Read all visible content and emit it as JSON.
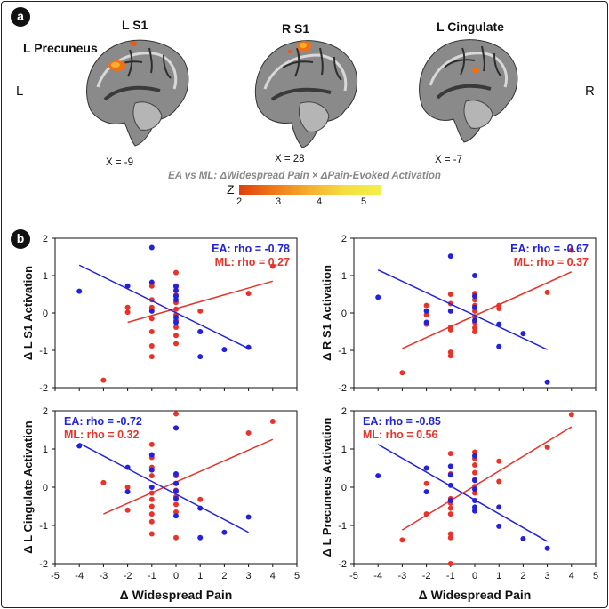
{
  "panel_a": {
    "badge": "a",
    "labels": {
      "l_s1": "L S1",
      "l_precuneus": "L Precuneus",
      "r_s1": "R S1",
      "l_cingulate": "L Cingulate",
      "left": "L",
      "right": "R"
    },
    "coords": [
      "X = -9",
      "X = 28",
      "X = -7"
    ],
    "contrast_title": "EA vs ML: ΔWidespread Pain × ΔPain-Evoked Activation",
    "colorbar": {
      "label": "Z",
      "ticks": [
        "2",
        "3",
        "4",
        "5"
      ],
      "colors": [
        "#e0400a",
        "#f6b030",
        "#f2f04a"
      ]
    }
  },
  "panel_b": {
    "badge": "b",
    "xlabel": "Δ Widespread Pain",
    "colors": {
      "EA": "#2222dd",
      "ML": "#e8332a"
    }
  },
  "chart_data": [
    {
      "type": "scatter",
      "ylabel": "Δ L S1 Activation",
      "xlim": [
        -5,
        5
      ],
      "ylim": [
        -2,
        2
      ],
      "xticks": [
        "-5",
        "-4",
        "-3",
        "-2",
        "-1",
        "0",
        "1",
        "2",
        "3",
        "4",
        "5"
      ],
      "yticks": [
        "2",
        "1",
        "0",
        "-1",
        "-2"
      ],
      "series": [
        {
          "name": "EA",
          "label": "EA: rho = -0.78",
          "points": [
            [
              -4,
              0.58
            ],
            [
              -2,
              0.72
            ],
            [
              -1,
              1.75
            ],
            [
              -1,
              0.82
            ],
            [
              -1,
              0.05
            ],
            [
              0,
              0.72
            ],
            [
              0,
              0.6
            ],
            [
              0,
              0.45
            ],
            [
              0,
              0.35
            ],
            [
              0,
              -0.12
            ],
            [
              0,
              -0.25
            ],
            [
              1,
              -0.5
            ],
            [
              1,
              -1.17
            ],
            [
              2,
              -0.98
            ],
            [
              3,
              -0.92
            ]
          ],
          "fit": [
            [
              -4,
              1.28
            ],
            [
              3,
              -0.95
            ]
          ]
        },
        {
          "name": "ML",
          "label": "ML: rho = 0.27",
          "points": [
            [
              -3,
              -1.8
            ],
            [
              -2,
              0.15
            ],
            [
              -2,
              0.02
            ],
            [
              -1,
              0.72
            ],
            [
              -1,
              0.35
            ],
            [
              -1,
              0.15
            ],
            [
              -1,
              -0.15
            ],
            [
              -1,
              -0.5
            ],
            [
              -1,
              -0.88
            ],
            [
              -1,
              -1.17
            ],
            [
              0,
              1.08
            ],
            [
              0,
              0.7
            ],
            [
              0,
              0.48
            ],
            [
              0,
              0.28
            ],
            [
              0,
              0.1
            ],
            [
              0,
              -0.05
            ],
            [
              0,
              -0.2
            ],
            [
              0,
              -0.38
            ],
            [
              0,
              -0.6
            ],
            [
              0,
              -0.82
            ],
            [
              1,
              0.05
            ],
            [
              1,
              -0.5
            ],
            [
              3,
              0.52
            ],
            [
              4,
              1.25
            ]
          ],
          "fit": [
            [
              -2,
              -0.25
            ],
            [
              4,
              0.85
            ]
          ]
        }
      ]
    },
    {
      "type": "scatter",
      "ylabel": "Δ R S1 Activation",
      "xlim": [
        -5,
        5
      ],
      "ylim": [
        -2,
        2
      ],
      "xticks": [
        "-5",
        "-4",
        "-3",
        "-2",
        "-1",
        "0",
        "1",
        "2",
        "3",
        "4",
        "5"
      ],
      "yticks": [
        "2",
        "1",
        "0",
        "-1",
        "-2"
      ],
      "series": [
        {
          "name": "EA",
          "label": "EA: rho = -0.67",
          "points": [
            [
              -4,
              0.42
            ],
            [
              -2,
              0.05
            ],
            [
              -2,
              -0.25
            ],
            [
              -1,
              1.52
            ],
            [
              -1,
              0.05
            ],
            [
              0,
              1.0
            ],
            [
              0,
              0.45
            ],
            [
              0,
              0.15
            ],
            [
              0,
              -0.2
            ],
            [
              1,
              -0.3
            ],
            [
              1,
              -0.9
            ],
            [
              2,
              -0.55
            ],
            [
              3,
              -1.85
            ]
          ],
          "fit": [
            [
              -4,
              1.15
            ],
            [
              3,
              -0.98
            ]
          ]
        },
        {
          "name": "ML",
          "label": "ML: rho = 0.37",
          "points": [
            [
              -3,
              -1.6
            ],
            [
              -2,
              0.2
            ],
            [
              -2,
              -0.05
            ],
            [
              -2,
              -0.3
            ],
            [
              -1,
              0.5
            ],
            [
              -1,
              0.25
            ],
            [
              -1,
              -0.38
            ],
            [
              -1,
              -0.45
            ],
            [
              -1,
              -1.05
            ],
            [
              -1,
              -1.15
            ],
            [
              0,
              0.52
            ],
            [
              0,
              0.35
            ],
            [
              0,
              0.2
            ],
            [
              0,
              0.05
            ],
            [
              0,
              -0.1
            ],
            [
              0,
              -0.25
            ],
            [
              0,
              -0.4
            ],
            [
              0,
              -0.5
            ],
            [
              1,
              0.2
            ],
            [
              1,
              0.12
            ],
            [
              3,
              0.55
            ],
            [
              4,
              1.68
            ]
          ],
          "fit": [
            [
              -3,
              -0.95
            ],
            [
              4,
              1.1
            ]
          ]
        }
      ]
    },
    {
      "type": "scatter",
      "ylabel": "Δ L Cingulate Activation",
      "xlim": [
        -5,
        5
      ],
      "ylim": [
        -2,
        2
      ],
      "xticks": [
        "-5",
        "-4",
        "-3",
        "-2",
        "-1",
        "0",
        "1",
        "2",
        "3",
        "4",
        "5"
      ],
      "yticks": [
        "2",
        "1",
        "0",
        "-1",
        "-2"
      ],
      "series": [
        {
          "name": "EA",
          "label": "EA: rho = -0.72",
          "points": [
            [
              -4,
              1.08
            ],
            [
              -2,
              0.52
            ],
            [
              -2,
              -0.12
            ],
            [
              -1,
              0.85
            ],
            [
              -1,
              0.45
            ],
            [
              -1,
              0.0
            ],
            [
              0,
              1.55
            ],
            [
              0,
              0.35
            ],
            [
              0,
              0.1
            ],
            [
              0,
              -0.1
            ],
            [
              0,
              -0.3
            ],
            [
              0,
              -0.75
            ],
            [
              1,
              -0.55
            ],
            [
              1,
              -1.32
            ],
            [
              2,
              -1.18
            ],
            [
              3,
              -0.78
            ]
          ],
          "fit": [
            [
              -4,
              1.15
            ],
            [
              3,
              -1.18
            ]
          ]
        },
        {
          "name": "ML",
          "label": "ML: rho = 0.32",
          "points": [
            [
              -3,
              0.12
            ],
            [
              -2,
              0.0
            ],
            [
              -2,
              -0.6
            ],
            [
              -1,
              1.12
            ],
            [
              -1,
              0.78
            ],
            [
              -1,
              0.52
            ],
            [
              -1,
              0.3
            ],
            [
              -1,
              -0.15
            ],
            [
              -1,
              -0.32
            ],
            [
              -1,
              -0.5
            ],
            [
              -1,
              -0.7
            ],
            [
              -1,
              -0.9
            ],
            [
              -1,
              -1.22
            ],
            [
              0,
              1.92
            ],
            [
              0,
              1.55
            ],
            [
              0,
              0.3
            ],
            [
              0,
              0.1
            ],
            [
              0,
              -0.08
            ],
            [
              0,
              -0.25
            ],
            [
              0,
              -0.45
            ],
            [
              0,
              -0.65
            ],
            [
              0,
              -1.32
            ],
            [
              1,
              -0.32
            ],
            [
              3,
              1.42
            ],
            [
              4,
              1.72
            ]
          ],
          "fit": [
            [
              -3,
              -0.7
            ],
            [
              4,
              1.25
            ]
          ]
        }
      ]
    },
    {
      "type": "scatter",
      "ylabel": "Δ L Precuneus Activation",
      "xlim": [
        -5,
        5
      ],
      "ylim": [
        -2,
        2
      ],
      "xticks": [
        "-5",
        "-4",
        "-3",
        "-2",
        "-1",
        "0",
        "1",
        "2",
        "3",
        "4",
        "5"
      ],
      "yticks": [
        "2",
        "1",
        "0",
        "-1",
        "-2"
      ],
      "series": [
        {
          "name": "EA",
          "label": "EA: rho = -0.85",
          "points": [
            [
              -4,
              0.3
            ],
            [
              -2,
              0.5
            ],
            [
              -2,
              -0.12
            ],
            [
              -1,
              0.55
            ],
            [
              -1,
              0.32
            ],
            [
              -1,
              0.05
            ],
            [
              -1,
              -0.35
            ],
            [
              0,
              0.82
            ],
            [
              0,
              0.18
            ],
            [
              0,
              -0.05
            ],
            [
              0,
              -0.35
            ],
            [
              0,
              -0.52
            ],
            [
              0,
              -0.62
            ],
            [
              1,
              -0.52
            ],
            [
              1,
              -1.02
            ],
            [
              2,
              -1.35
            ],
            [
              3,
              -1.6
            ]
          ],
          "fit": [
            [
              -4,
              1.12
            ],
            [
              3,
              -1.42
            ]
          ]
        },
        {
          "name": "ML",
          "label": "ML: rho = 0.56",
          "points": [
            [
              -3,
              -1.38
            ],
            [
              -2,
              0.1
            ],
            [
              -2,
              -0.7
            ],
            [
              -1,
              0.88
            ],
            [
              -1,
              0.35
            ],
            [
              -1,
              -0.3
            ],
            [
              -1,
              -0.42
            ],
            [
              -1,
              -0.55
            ],
            [
              -1,
              -0.7
            ],
            [
              -1,
              -1.22
            ],
            [
              -1,
              -1.32
            ],
            [
              -1,
              -2.0
            ],
            [
              0,
              0.92
            ],
            [
              0,
              0.75
            ],
            [
              0,
              0.58
            ],
            [
              0,
              0.38
            ],
            [
              0,
              0.2
            ],
            [
              0,
              0.02
            ],
            [
              0,
              -0.15
            ],
            [
              1,
              0.68
            ],
            [
              1,
              0.15
            ],
            [
              3,
              1.05
            ],
            [
              4,
              1.9
            ]
          ],
          "fit": [
            [
              -3,
              -1.12
            ],
            [
              4,
              1.58
            ]
          ]
        }
      ]
    }
  ]
}
